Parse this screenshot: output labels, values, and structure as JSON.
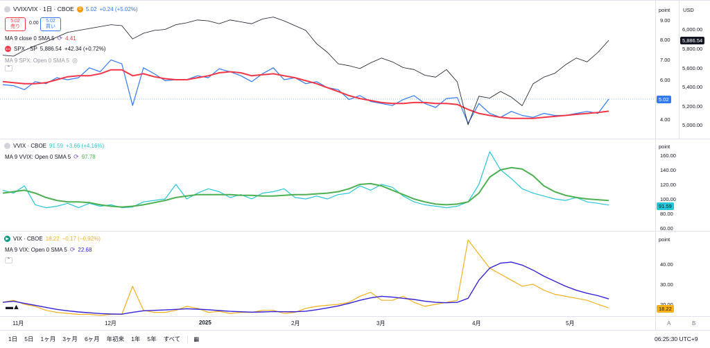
{
  "pane1": {
    "symbol": "VVIX/VIX · 1日 · CBOE",
    "last": "5.02",
    "change": "+0.24 (+5.02%)",
    "sell_price": "5.02",
    "sell_label": "売り",
    "spread": "0.00",
    "buy_price": "5.02",
    "buy_label": "買い",
    "ma_label": "MA 9 close 0 SMA 5",
    "ma_value": "4.41",
    "spx_label": "SPX · SP",
    "spx_value": "5,886.54",
    "spx_change": "+42.34 (+0.72%)",
    "spx_ma_label": "MA 9 SPX: Open 0 SMA 5",
    "axis_unit": "point",
    "currency": "USD",
    "left_ticks": [
      "9.00",
      "8.00",
      "7.00",
      "6.00",
      "5.00",
      "4.00"
    ],
    "right_ticks": [
      "6,000.00",
      "5,800.00",
      "5,600.00",
      "5,400.00",
      "5,200.00",
      "5,000.00"
    ],
    "current_tag": "5.02",
    "spx_tag": "5,886.54"
  },
  "pane2": {
    "symbol": "VVIX · CBOE",
    "last": "91.59",
    "change": "+3.66 (+4.16%)",
    "ma_label": "MA 9 VVIX: Open 0 SMA 5",
    "ma_value": "97.78",
    "axis_unit": "point",
    "ticks": [
      "160.00",
      "140.00",
      "120.00",
      "100.00",
      "80.00",
      "60.00"
    ],
    "current_tag": "91.59"
  },
  "pane3": {
    "symbol": "VIX · CBOE",
    "last": "18.22",
    "change": "−0.17 (−0.92%)",
    "ma_label": "MA 9 VIX: Open 0 SMA 5",
    "ma_value": "22.68",
    "axis_unit": "point",
    "ticks": [
      "40.00",
      "30.00",
      "20.00"
    ],
    "current_tag": "18.22"
  },
  "time_axis": [
    "11月",
    "12月",
    "2025",
    "2月",
    "3月",
    "4月",
    "5月"
  ],
  "bottom": {
    "ranges": [
      "1日",
      "5日",
      "1ヶ月",
      "3ヶ月",
      "6ヶ月",
      "年初来",
      "1年",
      "5年",
      "すべて"
    ],
    "clock": "06:25:30 UTC+9",
    "scale_a": "A",
    "scale_b": "B"
  },
  "colors": {
    "ratio": "#3179f5",
    "ratio_ma": "#f23645",
    "spx": "#131722",
    "vvix": "#26c6da",
    "vvix_ma": "#4caf50",
    "vix": "#f6b01d",
    "vix_ma": "#3320d8"
  },
  "chart_data": [
    {
      "type": "line",
      "x_labels": [
        "11月",
        "12月",
        "2025",
        "2月",
        "3月",
        "4月",
        "5月"
      ],
      "series": [
        {
          "name": "VVIX/VIX",
          "values": [
            5.75,
            5.7,
            5.5,
            5.9,
            5.8,
            6.1,
            6.0,
            6.1,
            6.6,
            6.4,
            7.0,
            6.8,
            4.7,
            6.6,
            6.3,
            5.95,
            6.0,
            6.0,
            6.2,
            6.1,
            6.55,
            6.4,
            6.2,
            5.9,
            6.3,
            6.6,
            6.0,
            6.1,
            5.8,
            5.9,
            5.6,
            5.5,
            5.0,
            5.2,
            4.9,
            4.8,
            4.7,
            5.0,
            5.2,
            4.8,
            4.6,
            5.05,
            5.1,
            3.8,
            4.8,
            4.3,
            4.1,
            4.4,
            4.2,
            4.1,
            4.3,
            4.2,
            4.2,
            4.3,
            4.4,
            4.3,
            5.02
          ]
        },
        {
          "name": "MA 9 close 0 SMA 5",
          "values": [
            5.9,
            5.85,
            5.8,
            5.8,
            5.85,
            6.0,
            6.15,
            6.2,
            6.2,
            6.3,
            6.5,
            6.5,
            6.2,
            6.3,
            6.15,
            6.05,
            6.0,
            6.0,
            6.1,
            6.2,
            6.35,
            6.4,
            6.35,
            6.2,
            6.25,
            6.3,
            6.2,
            6.1,
            5.95,
            5.8,
            5.6,
            5.4,
            5.2,
            5.05,
            4.95,
            4.85,
            4.8,
            4.8,
            4.85,
            4.85,
            4.8,
            4.8,
            4.75,
            4.5,
            4.3,
            4.2,
            4.1,
            4.05,
            4.05,
            4.05,
            4.1,
            4.15,
            4.2,
            4.25,
            4.3,
            4.35,
            4.41
          ]
        },
        {
          "name": "SPX",
          "values": [
            5730,
            5720,
            5780,
            5830,
            5870,
            5920,
            5970,
            5990,
            6010,
            6030,
            6050,
            6040,
            5900,
            5960,
            5990,
            6000,
            6050,
            6070,
            6100,
            6090,
            6060,
            6100,
            6080,
            6060,
            6110,
            6130,
            6090,
            6040,
            5990,
            5850,
            5760,
            5640,
            5620,
            5590,
            5650,
            5700,
            5660,
            5600,
            5580,
            5520,
            5500,
            5580,
            5450,
            5000,
            5300,
            5280,
            5350,
            5290,
            5200,
            5430,
            5500,
            5540,
            5630,
            5700,
            5660,
            5760,
            5886.54
          ]
        }
      ]
    },
    {
      "type": "line",
      "x_labels": [
        "11月",
        "12月",
        "2025",
        "2月",
        "3月",
        "4月",
        "5月"
      ],
      "ylim": [
        60,
        160
      ],
      "series": [
        {
          "name": "VVIX",
          "values": [
            112,
            108,
            118,
            92,
            88,
            90,
            94,
            88,
            94,
            90,
            92,
            88,
            89,
            96,
            98,
            100,
            120,
            100,
            108,
            114,
            110,
            102,
            106,
            100,
            108,
            110,
            114,
            102,
            100,
            104,
            100,
            106,
            108,
            118,
            112,
            120,
            116,
            104,
            96,
            92,
            90,
            88,
            90,
            96,
            120,
            165,
            140,
            128,
            114,
            108,
            104,
            100,
            98,
            102,
            96,
            94,
            91.59
          ]
        },
        {
          "name": "MA 9 VVIX: Open 0 SMA 5",
          "values": [
            108,
            110,
            112,
            108,
            102,
            98,
            96,
            96,
            95,
            92,
            90,
            89,
            90,
            92,
            95,
            98,
            102,
            104,
            106,
            106,
            106,
            106,
            105,
            105,
            104,
            104,
            105,
            106,
            106,
            107,
            108,
            110,
            114,
            120,
            121,
            118,
            112,
            106,
            100,
            96,
            93,
            92,
            93,
            96,
            108,
            130,
            140,
            143,
            141,
            132,
            118,
            110,
            105,
            102,
            100,
            99,
            97.78
          ]
        }
      ]
    },
    {
      "type": "line",
      "x_labels": [
        "11月",
        "12月",
        "2025",
        "2月",
        "3月",
        "4月",
        "5月"
      ],
      "ylim": [
        15,
        55
      ],
      "series": [
        {
          "name": "VIX",
          "values": [
            21,
            22,
            20,
            19,
            17,
            16,
            15.5,
            15,
            15,
            14.5,
            15,
            15,
            29,
            17,
            16,
            16,
            17,
            19,
            18,
            16,
            16.5,
            15.5,
            16,
            16,
            17,
            17,
            15.5,
            16,
            18,
            19,
            19.5,
            20,
            21,
            24,
            26,
            22,
            22,
            24,
            21,
            19,
            20,
            21,
            22,
            52,
            45,
            38,
            35,
            32,
            29,
            30,
            27,
            25,
            24,
            23,
            22,
            20,
            18.22
          ]
        },
        {
          "name": "MA 9 VIX: Open 0 SMA 5",
          "values": [
            21,
            21.5,
            20.5,
            19.5,
            18.5,
            17.5,
            16.8,
            16.2,
            15.8,
            15.4,
            15.2,
            15.1,
            16,
            16.8,
            17,
            17.2,
            17.5,
            17.8,
            17.6,
            17.3,
            16.9,
            16.5,
            16.3,
            16.1,
            16.2,
            16.4,
            16.3,
            16.3,
            16.6,
            17.3,
            18.2,
            19.2,
            20.5,
            22,
            23.2,
            24,
            23.6,
            23,
            22.4,
            21.6,
            21,
            20.8,
            21,
            23,
            32,
            38,
            40.5,
            41,
            39.5,
            37,
            34,
            31.5,
            29,
            27,
            25.5,
            24.3,
            22.68
          ]
        }
      ]
    }
  ]
}
